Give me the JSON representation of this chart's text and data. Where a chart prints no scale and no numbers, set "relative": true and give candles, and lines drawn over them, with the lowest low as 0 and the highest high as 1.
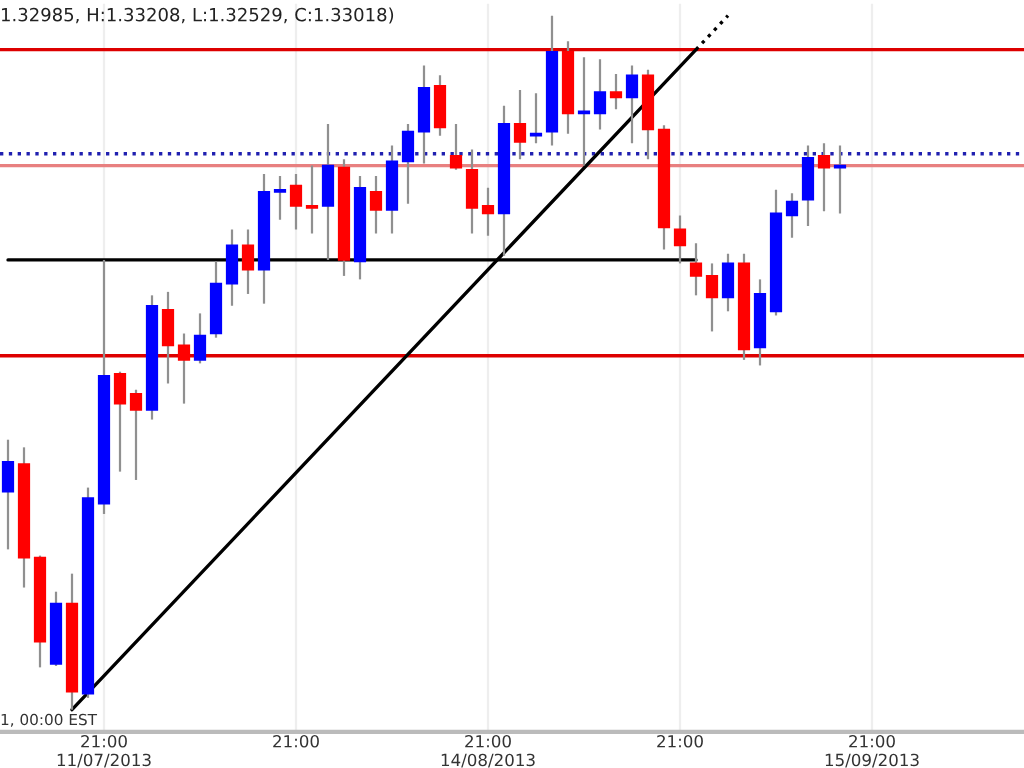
{
  "chart_data": {
    "type": "candlestick",
    "relative": true,
    "title": "1.32985, H:1.33208, L:1.32529, C:1.33018)",
    "annotations": [
      "1, 00:00 EST"
    ],
    "categories": [
      null,
      null,
      null,
      null,
      null,
      null,
      "21:00\n11/07/2013",
      null,
      null,
      null,
      null,
      null,
      null,
      null,
      null,
      null,
      null,
      null,
      "21:00",
      null,
      null,
      null,
      null,
      null,
      null,
      null,
      null,
      null,
      null,
      null,
      "21:00\n14/08/2013",
      null,
      null,
      null,
      null,
      null,
      null,
      null,
      null,
      null,
      null,
      null,
      "21:00",
      null,
      null,
      null,
      null,
      null,
      null,
      null,
      null,
      null,
      null,
      null,
      "21:00\n15/09/2013",
      null,
      null,
      null,
      null,
      null,
      null,
      null,
      null,
      null
    ],
    "ohlc": [
      [
        0.314,
        0.389,
        0.231,
        0.357
      ],
      [
        0.354,
        0.378,
        0.176,
        0.219
      ],
      [
        0.219,
        0.222,
        0.061,
        0.098
      ],
      [
        0.066,
        0.17,
        0.063,
        0.153
      ],
      [
        0.153,
        0.196,
        0.0,
        0.026
      ],
      [
        0.023,
        0.32,
        0.017,
        0.305
      ],
      [
        0.297,
        0.648,
        0.282,
        0.481
      ],
      [
        0.484,
        0.487,
        0.343,
        0.441
      ],
      [
        0.455,
        0.461,
        0.331,
        0.432
      ],
      [
        0.432,
        0.597,
        0.418,
        0.582
      ],
      [
        0.576,
        0.602,
        0.47,
        0.525
      ],
      [
        0.525,
        0.542,
        0.441,
        0.504
      ],
      [
        0.504,
        0.571,
        0.499,
        0.539
      ],
      [
        0.542,
        0.646,
        0.536,
        0.614
      ],
      [
        0.614,
        0.692,
        0.582,
        0.669
      ],
      [
        0.669,
        0.692,
        0.599,
        0.634
      ],
      [
        0.634,
        0.772,
        0.585,
        0.746
      ],
      [
        0.746,
        0.769,
        0.706,
        0.749
      ],
      [
        0.755,
        0.772,
        0.692,
        0.726
      ],
      [
        0.726,
        0.784,
        0.686,
        0.723
      ],
      [
        0.726,
        0.844,
        0.648,
        0.784
      ],
      [
        0.781,
        0.793,
        0.625,
        0.648
      ],
      [
        0.646,
        0.769,
        0.62,
        0.752
      ],
      [
        0.746,
        0.769,
        0.686,
        0.72
      ],
      [
        0.72,
        0.813,
        0.686,
        0.79
      ],
      [
        0.79,
        0.844,
        0.729,
        0.833
      ],
      [
        0.833,
        0.928,
        0.787,
        0.896
      ],
      [
        0.899,
        0.914,
        0.827,
        0.839
      ],
      [
        0.798,
        0.844,
        0.778,
        0.781
      ],
      [
        0.778,
        0.807,
        0.686,
        0.723
      ],
      [
        0.726,
        0.752,
        0.683,
        0.715
      ],
      [
        0.715,
        0.87,
        0.654,
        0.844
      ],
      [
        0.844,
        0.893,
        0.793,
        0.818
      ],
      [
        0.827,
        0.888,
        0.816,
        0.83
      ],
      [
        0.833,
        1.0,
        0.813,
        0.948
      ],
      [
        0.948,
        0.963,
        0.83,
        0.859
      ],
      [
        0.859,
        0.94,
        0.784,
        0.862
      ],
      [
        0.859,
        0.937,
        0.836,
        0.89
      ],
      [
        0.89,
        0.916,
        0.865,
        0.882
      ],
      [
        0.882,
        0.928,
        0.816,
        0.914
      ],
      [
        0.914,
        0.922,
        0.793,
        0.836
      ],
      [
        0.836,
        0.842,
        0.663,
        0.695
      ],
      [
        0.692,
        0.712,
        0.643,
        0.669
      ],
      [
        0.643,
        0.672,
        0.597,
        0.625
      ],
      [
        0.625,
        0.643,
        0.545,
        0.594
      ],
      [
        0.594,
        0.657,
        0.574,
        0.643
      ],
      [
        0.643,
        0.657,
        0.504,
        0.519
      ],
      [
        0.522,
        0.62,
        0.496,
        0.599
      ],
      [
        0.574,
        0.749,
        0.568,
        0.715
      ],
      [
        0.712,
        0.744,
        0.68,
        0.732
      ],
      [
        0.735,
        0.813,
        0.697,
        0.795
      ],
      [
        0.798,
        0.816,
        0.718,
        0.781
      ],
      [
        0.781,
        0.813,
        0.715,
        0.784
      ],
      null,
      null,
      null,
      null,
      null,
      null,
      null,
      null,
      null,
      null,
      null
    ],
    "colors": [
      "#0000ff",
      "#ff0000",
      "#ff0000",
      "#0000ff",
      "#ff0000",
      "#0000ff",
      "#0000ff",
      "#ff0000",
      "#ff0000",
      "#0000ff",
      "#ff0000",
      "#ff0000",
      "#0000ff",
      "#0000ff",
      "#0000ff",
      "#ff0000",
      "#0000ff",
      "#0000ff",
      "#ff0000",
      "#ff0000",
      "#0000ff",
      "#ff0000",
      "#0000ff",
      "#ff0000",
      "#0000ff",
      "#0000ff",
      "#0000ff",
      "#ff0000",
      "#ff0000",
      "#ff0000",
      "#ff0000",
      "#0000ff",
      "#ff0000",
      "#0000ff",
      "#0000ff",
      "#ff0000",
      "#0000ff",
      "#0000ff",
      "#ff0000",
      "#0000ff",
      "#ff0000",
      "#ff0000",
      "#ff0000",
      "#ff0000",
      "#ff0000",
      "#0000ff",
      "#ff0000",
      "#0000ff",
      "#0000ff",
      "#0000ff",
      "#0000ff",
      "#ff0000",
      "#0000ff",
      null,
      null,
      null,
      null,
      null,
      null,
      null,
      null,
      null,
      null,
      null
    ],
    "series": [
      {
        "type": "line",
        "color": "#000000",
        "line_style": "solid",
        "values": [
          null,
          null,
          null,
          null,
          0.0,
          null,
          null,
          null,
          null,
          null,
          null,
          null,
          null,
          null,
          null,
          null,
          null,
          null,
          null,
          null,
          null,
          null,
          null,
          null,
          null,
          null,
          null,
          null,
          null,
          null,
          null,
          null,
          null,
          null,
          null,
          null,
          null,
          null,
          null,
          null,
          null,
          null,
          null,
          0.951,
          null,
          null,
          null,
          null,
          null,
          null,
          null,
          null,
          null,
          null,
          null,
          null,
          null,
          null,
          null,
          null,
          null,
          null,
          null,
          null
        ]
      },
      {
        "type": "line",
        "color": "#000000",
        "line_style": "dotted",
        "values": [
          null,
          null,
          null,
          null,
          null,
          null,
          null,
          null,
          null,
          null,
          null,
          null,
          null,
          null,
          null,
          null,
          null,
          null,
          null,
          null,
          null,
          null,
          null,
          null,
          null,
          null,
          null,
          null,
          null,
          null,
          null,
          null,
          null,
          null,
          null,
          null,
          null,
          null,
          null,
          null,
          null,
          null,
          null,
          0.951,
          null,
          1.0,
          null,
          null,
          null,
          null,
          null,
          null,
          null,
          null,
          null,
          null,
          null,
          null,
          null,
          null,
          null,
          null,
          null,
          null
        ]
      },
      {
        "type": "line",
        "color": "#000000",
        "line_style": "solid",
        "values": [
          0.648,
          null,
          null,
          null,
          null,
          null,
          null,
          null,
          null,
          null,
          null,
          null,
          null,
          null,
          null,
          null,
          null,
          null,
          null,
          null,
          null,
          null,
          null,
          null,
          null,
          null,
          null,
          null,
          null,
          null,
          null,
          null,
          null,
          null,
          null,
          null,
          null,
          null,
          null,
          null,
          null,
          null,
          null,
          0.648,
          null,
          null,
          null,
          null,
          null,
          null,
          null,
          null,
          null,
          null,
          null,
          null,
          null,
          null,
          null,
          null,
          null,
          null,
          null,
          null
        ]
      }
    ],
    "ref_lines": [
      {
        "axis": "y",
        "value": 0.951,
        "color": "#dd0000",
        "line_style": "solid"
      },
      {
        "axis": "y",
        "value": 0.51,
        "color": "#dd0000",
        "line_style": "solid"
      },
      {
        "axis": "y",
        "value": 0.784,
        "color": "#e88080",
        "line_style": "solid"
      },
      {
        "axis": "y",
        "value": 0.801,
        "color": "#2020b0",
        "line_style": "dotted"
      }
    ],
    "grid": "x",
    "legend": false
  }
}
